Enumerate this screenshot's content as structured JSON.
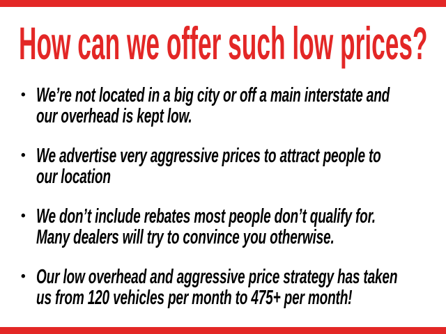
{
  "page": {
    "headline": "How can we offer such low prices?",
    "bullet_glyph": "•",
    "colors": {
      "accent_red": "#e32726",
      "text_black": "#000000",
      "background": "#ffffff"
    },
    "bullets": [
      {
        "lines": [
          "We’re not located in a big city or off a main interstate and",
          "our overhead is kept low."
        ]
      },
      {
        "lines": [
          "We advertise very aggressive prices to attract people to",
          "our location"
        ]
      },
      {
        "lines": [
          "We don’t include rebates most people don’t qualify for.",
          "Many dealers will try to convince you otherwise."
        ]
      },
      {
        "lines": [
          "Our low overhead and aggressive price strategy has taken",
          "us from 120 vehicles per month to 475+ per month!"
        ]
      }
    ]
  }
}
